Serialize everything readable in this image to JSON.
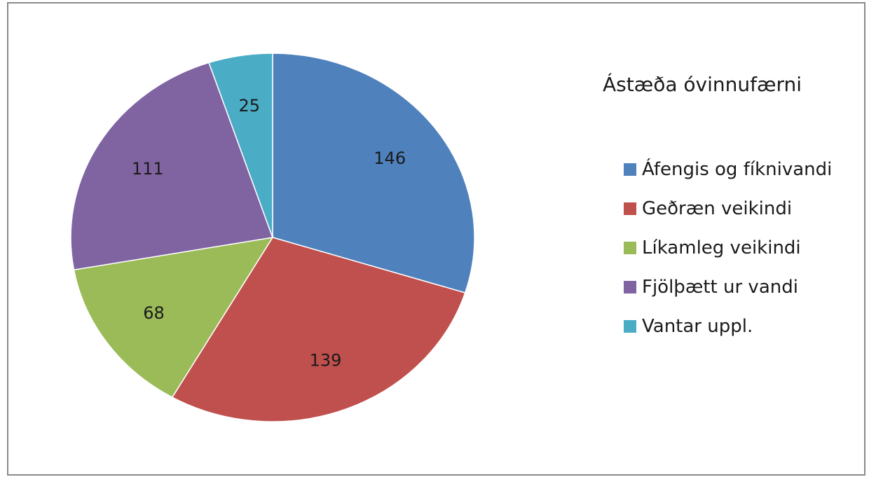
{
  "chart_data": {
    "type": "pie",
    "legend_title": "Ástæða óvinnufærni",
    "legend_position": "right",
    "start_angle_deg": 0,
    "direction": "clockwise",
    "categories": [
      "Áfengis og fíknivandi",
      "Geðræn veikindi",
      "Líkamleg veikindi",
      "Fjölþætt ur vandi",
      "Vantar uppl."
    ],
    "values": [
      146,
      139,
      68,
      111,
      25
    ],
    "colors": [
      "#4f81bd",
      "#c0504d",
      "#9bbb59",
      "#8064a2",
      "#4bacc6"
    ],
    "data_labels": [
      "146",
      "139",
      "68",
      "111",
      "25"
    ]
  }
}
